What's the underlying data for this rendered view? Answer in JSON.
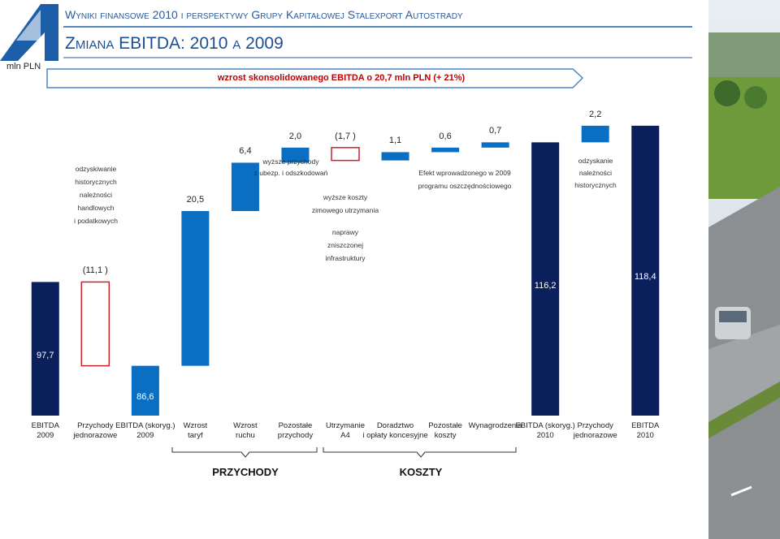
{
  "header": {
    "title": "Wyniki finansowe 2010 i perspektywy Grupy Kapitałowej Stalexport Autostrady"
  },
  "chart_data": {
    "type": "waterfall",
    "title": "Zmiana EBITDA: 2010 a 2009",
    "unit": "mln PLN",
    "subtitle": "wzrost skonsolidowanego EBITDA o 20,7 mln PLN (+ 21%)",
    "categories": [
      "EBITDA\n2009",
      "Przychody\njednorazowe",
      "EBITDA (skoryg.)\n2009",
      "Wzrost\ntaryf",
      "Wzrost\nruchu",
      "Pozostałe\nprzychody",
      "Utrzymanie\nA4",
      "Doradztwo\ni opłaty koncesyjne",
      "Pozostałe\nkoszty",
      "Wynagrodzenia",
      "EBITDA (skoryg.)\n2010",
      "Przychody\njednorazowe",
      "EBITDA\n2010"
    ],
    "measures": [
      "total",
      "relative",
      "total",
      "relative",
      "relative",
      "relative",
      "relative",
      "relative",
      "relative",
      "relative",
      "total",
      "relative",
      "total"
    ],
    "values": [
      97.7,
      -11.1,
      86.6,
      20.5,
      6.4,
      2.0,
      -1.7,
      1.1,
      0.6,
      0.7,
      116.2,
      2.2,
      118.4
    ],
    "value_labels": [
      "97,7",
      "(11,1 )",
      "86,6",
      "20,5",
      "6,4",
      "2,0",
      "(1,7 )",
      "1,1",
      "0,6",
      "0,7",
      "116,2",
      "2,2",
      "118,4"
    ],
    "colors": {
      "total": "#0b1f5c",
      "total_adjusted": "#0a6fc2",
      "increase": "#0a6fc2",
      "decrease": "#d0202a"
    },
    "ylim": [
      80,
      120
    ],
    "annotations": [
      "odzyskiwanie\nhistorycznych\nnależności\nhandlowych\ni podatkowych",
      "wyższe przychody\nz ubezp. i odszkodowań",
      "wyższe koszty\nzimowego utrzymania",
      "naprawy\nzniszczonej\ninfrastruktury",
      "Efekt wprowadzonego w 2009\nprogramu oszczędnościowego",
      "odzyskanie\nnależności\nhistorycznych"
    ],
    "groups": [
      "PRZYCHODY",
      "KOSZTY"
    ]
  }
}
